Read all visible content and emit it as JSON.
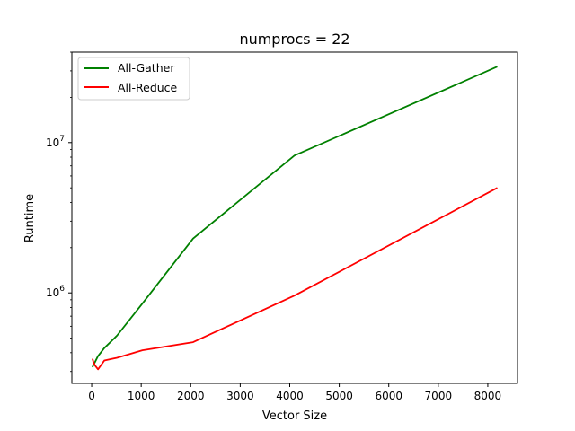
{
  "chart_data": {
    "type": "line",
    "title": "numprocs = 22",
    "xlabel": "Vector Size",
    "ylabel": "Runtime",
    "xlim": [
      -400,
      8600
    ],
    "ylim": [
      250000,
      40000000
    ],
    "yscale": "log",
    "grid": false,
    "legend_position": "top-left",
    "x_ticks": [
      0,
      1000,
      2000,
      3000,
      4000,
      5000,
      6000,
      7000,
      8000
    ],
    "x_tick_labels": [
      "0",
      "1000",
      "2000",
      "3000",
      "4000",
      "5000",
      "6000",
      "7000",
      "8000"
    ],
    "y_ticks": [
      {
        "value": 1000000,
        "base": "10",
        "exp": "6"
      },
      {
        "value": 10000000,
        "base": "10",
        "exp": "7"
      }
    ],
    "series": [
      {
        "name": "All-Gather",
        "color": "#008000",
        "x": [
          16,
          32,
          64,
          128,
          256,
          512,
          1024,
          2048,
          4096,
          8192
        ],
        "y": [
          320000,
          330000,
          345000,
          380000,
          430000,
          520000,
          850000,
          2300000,
          8200000,
          32000000
        ]
      },
      {
        "name": "All-Reduce",
        "color": "#ff0000",
        "x": [
          16,
          32,
          64,
          128,
          256,
          512,
          1024,
          2048,
          4096,
          8192
        ],
        "y": [
          365000,
          350000,
          330000,
          310000,
          355000,
          370000,
          415000,
          470000,
          960000,
          5000000
        ]
      }
    ]
  }
}
